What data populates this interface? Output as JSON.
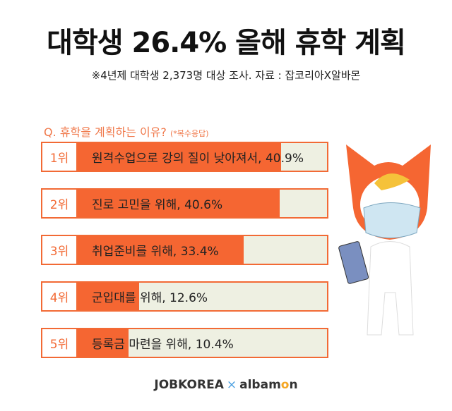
{
  "title": "대학생 26.4% 올해 휴학 계획",
  "subtitle": "※4년제 대학생 2,373명 대상 조사. 자료 : 잡코리아X알바몬",
  "chart_data": {
    "type": "bar",
    "title": "Q. 휴학을 계획하는 이유?",
    "title_note": "(*복수응답)",
    "categories": [
      "1위",
      "2위",
      "3위",
      "4위",
      "5위"
    ],
    "labels": [
      "원격수업으로 강의 질이 낮아져서, 40.9%",
      "진로 고민을 위해, 40.6%",
      "취업준비를 위해, 33.4%",
      "군입대를 위해, 12.6%",
      "등록금 마련을 위해, 10.4%"
    ],
    "values": [
      40.9,
      40.6,
      33.4,
      12.6,
      10.4
    ],
    "xlim": [
      0,
      50
    ],
    "colors": {
      "bar": "#f56632",
      "track": "#eef0e2",
      "rank": "#f26a35"
    }
  },
  "logo": {
    "left": "JOBKOREA",
    "x": "×",
    "right_a": "albam",
    "right_o": "o",
    "right_n": "n"
  }
}
